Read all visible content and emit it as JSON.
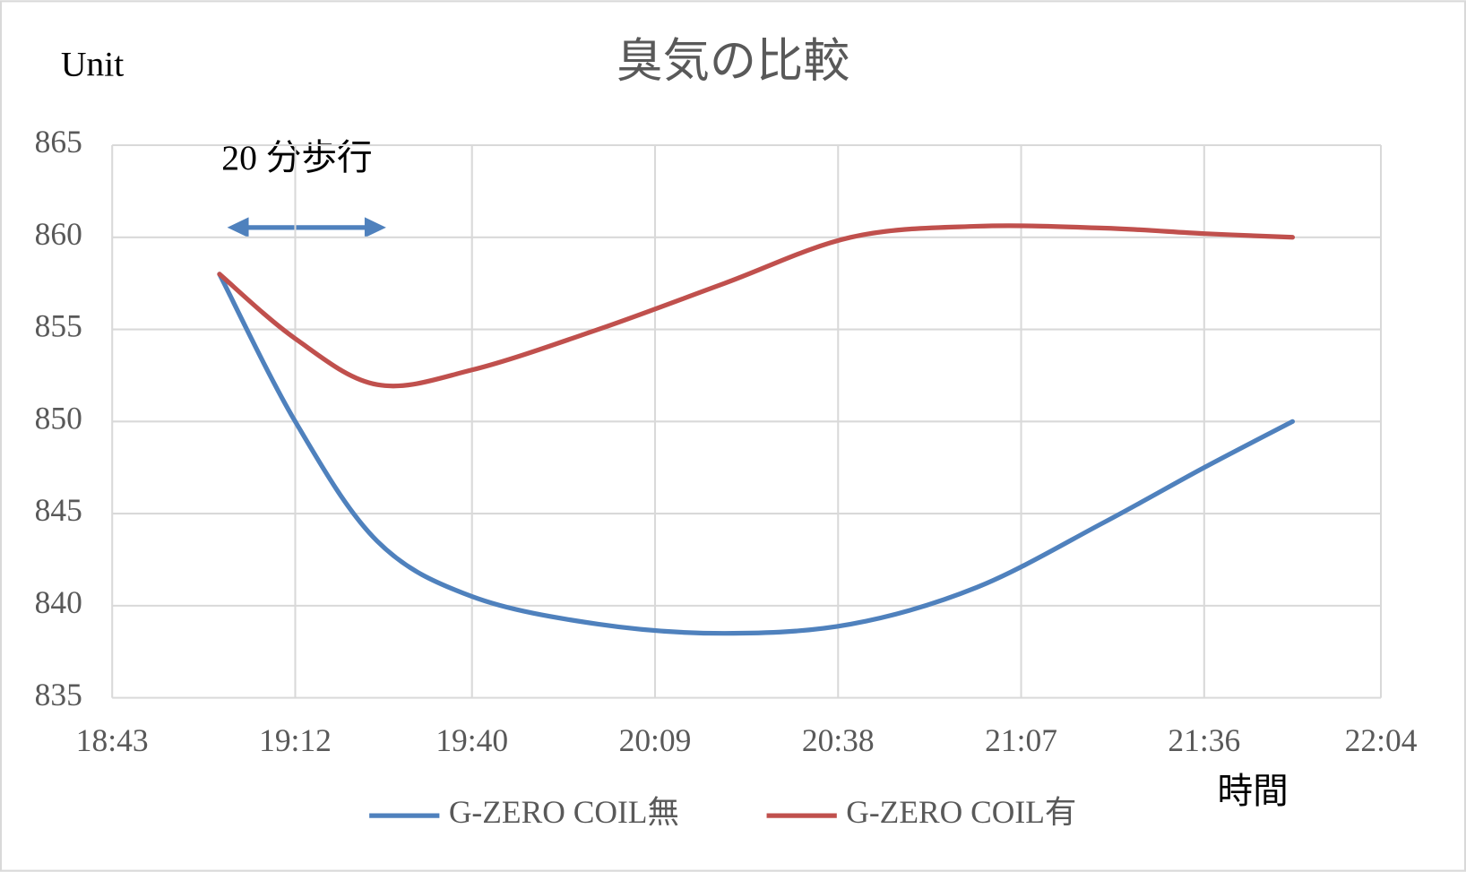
{
  "chart_data": {
    "type": "line",
    "title": "臭気の比較",
    "y_label": "Unit",
    "x_label": "時間",
    "annotation": "20 分歩行",
    "x": [
      "19:00",
      "19:12",
      "19:25",
      "19:40",
      "20:00",
      "20:20",
      "20:40",
      "21:00",
      "21:20",
      "21:36",
      "21:50"
    ],
    "series": [
      {
        "name": "G-ZERO COIL無",
        "color": "#4f81bd",
        "values": [
          858,
          850,
          843.5,
          840.5,
          839,
          838.5,
          839,
          841,
          844.5,
          847.5,
          850
        ]
      },
      {
        "name": "G-ZERO COIL有",
        "color": "#c0504d",
        "values": [
          858,
          854.5,
          852,
          852.8,
          855,
          857.5,
          860,
          860.6,
          860.5,
          860.2,
          860
        ]
      }
    ],
    "xlim": [
      "18:43",
      "22:04"
    ],
    "xticks": [
      "18:43",
      "19:12",
      "19:40",
      "20:09",
      "20:38",
      "21:07",
      "21:36",
      "22:04"
    ],
    "ylim": [
      835,
      865
    ],
    "yticks": [
      835,
      840,
      845,
      850,
      855,
      860,
      865
    ],
    "grid": true,
    "smooth": true,
    "legend": "bottom"
  }
}
